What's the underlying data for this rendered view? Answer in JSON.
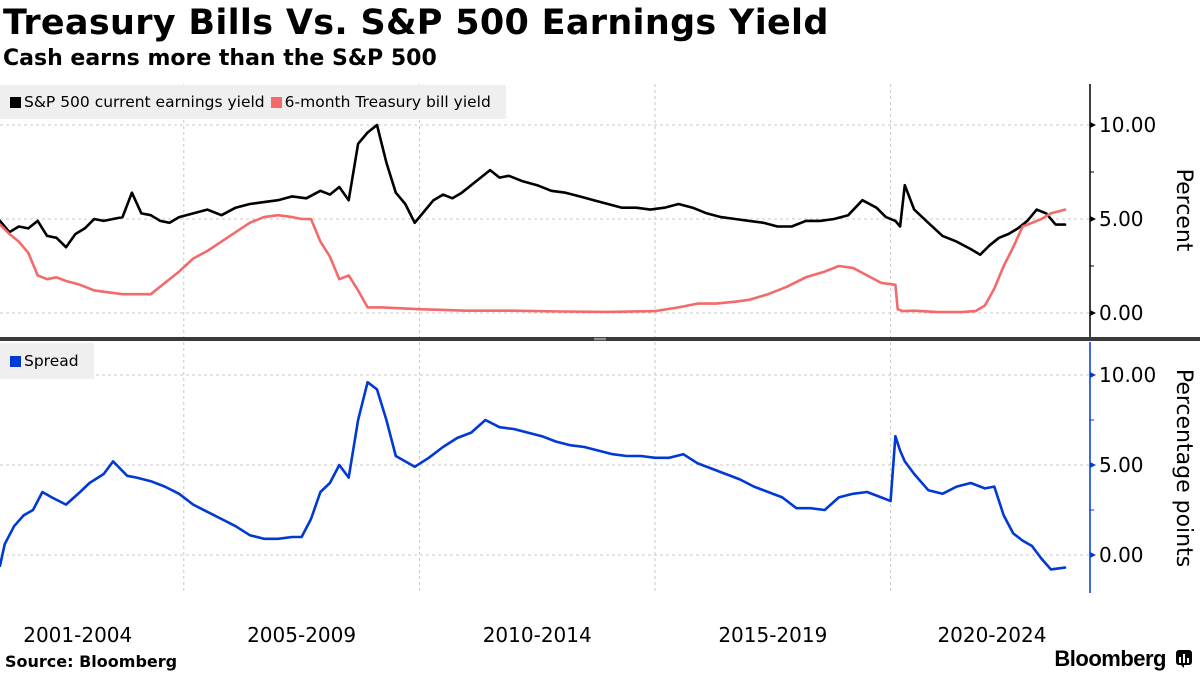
{
  "header": {
    "title": "Treasury Bills Vs. S&P 500 Earnings Yield",
    "subtitle": "Cash earns more than the S&P 500"
  },
  "footer": {
    "source": "Source:  Bloomberg",
    "brand": "Bloomberg",
    "brand_icon": "bloomberg-terminal-icon"
  },
  "colors": {
    "earnings_yield": "#000000",
    "tbill_yield": "#f46a6a",
    "spread": "#0039d4",
    "grid": "#c8c8c8",
    "separator": "#3a3a3a",
    "legend_bg": "#efefef"
  },
  "chart_data": [
    {
      "type": "line",
      "panel": "top",
      "legend": [
        {
          "name": "S&P 500 current earnings yield",
          "color": "#000000"
        },
        {
          "name": "6-month Treasury bill yield",
          "color": "#f46a6a"
        }
      ],
      "legend_position": "top-left",
      "ylabel": "Percent",
      "yticks": [
        0,
        5,
        10
      ],
      "ytick_labels": [
        "0.00",
        "5.00",
        "10.00"
      ],
      "ylim": [
        -0.6,
        12.0
      ],
      "xlim": [
        2001.1,
        2024.3
      ],
      "xticks": [
        2005,
        2010,
        2015,
        2020
      ],
      "grid": true,
      "series": [
        {
          "name": "S&P 500 current earnings yield",
          "x": [
            2001.1,
            2001.3,
            2001.5,
            2001.7,
            2001.9,
            2002.1,
            2002.3,
            2002.5,
            2002.7,
            2002.9,
            2003.1,
            2003.3,
            2003.5,
            2003.7,
            2003.9,
            2004.1,
            2004.3,
            2004.5,
            2004.7,
            2004.9,
            2005.2,
            2005.5,
            2005.8,
            2006.1,
            2006.4,
            2006.7,
            2007.0,
            2007.3,
            2007.6,
            2007.9,
            2008.1,
            2008.3,
            2008.5,
            2008.7,
            2008.9,
            2009.1,
            2009.3,
            2009.5,
            2009.7,
            2009.9,
            2010.1,
            2010.3,
            2010.5,
            2010.7,
            2010.9,
            2011.2,
            2011.5,
            2011.7,
            2011.9,
            2012.2,
            2012.5,
            2012.8,
            2013.1,
            2013.4,
            2013.7,
            2014.0,
            2014.3,
            2014.6,
            2014.9,
            2015.2,
            2015.5,
            2015.8,
            2016.1,
            2016.4,
            2016.7,
            2017.0,
            2017.3,
            2017.6,
            2017.9,
            2018.2,
            2018.5,
            2018.8,
            2019.1,
            2019.4,
            2019.7,
            2019.9,
            2020.1,
            2020.2,
            2020.3,
            2020.5,
            2020.8,
            2021.1,
            2021.4,
            2021.7,
            2021.9,
            2022.1,
            2022.3,
            2022.5,
            2022.7,
            2022.9,
            2023.1,
            2023.3,
            2023.5,
            2023.7
          ],
          "y": [
            4.9,
            4.3,
            4.6,
            4.5,
            4.9,
            4.1,
            4.0,
            3.5,
            4.2,
            4.5,
            5.0,
            4.9,
            5.0,
            5.1,
            6.4,
            5.3,
            5.2,
            4.9,
            4.8,
            5.1,
            5.3,
            5.5,
            5.2,
            5.6,
            5.8,
            5.9,
            6.0,
            6.2,
            6.1,
            6.5,
            6.3,
            6.7,
            6.0,
            9.0,
            9.6,
            10.0,
            8.0,
            6.4,
            5.8,
            4.8,
            5.4,
            6.0,
            6.3,
            6.1,
            6.4,
            7.0,
            7.6,
            7.2,
            7.3,
            7.0,
            6.8,
            6.5,
            6.4,
            6.2,
            6.0,
            5.8,
            5.6,
            5.6,
            5.5,
            5.6,
            5.8,
            5.6,
            5.3,
            5.1,
            5.0,
            4.9,
            4.8,
            4.6,
            4.6,
            4.9,
            4.9,
            5.0,
            5.2,
            6.0,
            5.6,
            5.1,
            4.9,
            4.6,
            6.8,
            5.5,
            4.8,
            4.1,
            3.8,
            3.4,
            3.1,
            3.6,
            4.0,
            4.2,
            4.5,
            4.9,
            5.5,
            5.3,
            4.7,
            4.7
          ]
        },
        {
          "name": "6-month Treasury bill yield",
          "x": [
            2001.1,
            2001.3,
            2001.5,
            2001.7,
            2001.9,
            2002.1,
            2002.3,
            2002.5,
            2002.8,
            2003.1,
            2003.4,
            2003.7,
            2004.0,
            2004.3,
            2004.6,
            2004.9,
            2005.2,
            2005.5,
            2005.8,
            2006.1,
            2006.4,
            2006.7,
            2007.0,
            2007.3,
            2007.5,
            2007.7,
            2007.9,
            2008.1,
            2008.3,
            2008.5,
            2008.7,
            2008.9,
            2009.2,
            2009.6,
            2010.0,
            2011.0,
            2012.0,
            2013.0,
            2014.0,
            2015.0,
            2015.5,
            2015.9,
            2016.3,
            2016.7,
            2017.0,
            2017.4,
            2017.8,
            2018.2,
            2018.6,
            2018.9,
            2019.2,
            2019.5,
            2019.8,
            2020.1,
            2020.15,
            2020.25,
            2020.5,
            2021.0,
            2021.5,
            2021.8,
            2022.0,
            2022.2,
            2022.4,
            2022.6,
            2022.8,
            2023.0,
            2023.2,
            2023.4,
            2023.7
          ],
          "y": [
            4.7,
            4.2,
            3.8,
            3.2,
            2.0,
            1.8,
            1.9,
            1.7,
            1.5,
            1.2,
            1.1,
            1.0,
            1.0,
            1.0,
            1.6,
            2.2,
            2.9,
            3.3,
            3.8,
            4.3,
            4.8,
            5.1,
            5.2,
            5.1,
            5.0,
            5.0,
            3.8,
            3.0,
            1.8,
            2.0,
            1.2,
            0.3,
            0.3,
            0.25,
            0.2,
            0.12,
            0.12,
            0.08,
            0.06,
            0.1,
            0.3,
            0.5,
            0.5,
            0.6,
            0.7,
            1.0,
            1.4,
            1.9,
            2.2,
            2.5,
            2.4,
            2.0,
            1.6,
            1.5,
            0.2,
            0.1,
            0.12,
            0.05,
            0.05,
            0.1,
            0.4,
            1.3,
            2.5,
            3.5,
            4.6,
            4.8,
            5.0,
            5.3,
            5.5
          ]
        }
      ]
    },
    {
      "type": "line",
      "panel": "bottom",
      "legend": [
        {
          "name": "Spread",
          "color": "#0039d4"
        }
      ],
      "legend_position": "top-left",
      "ylabel": "Percentage points",
      "yticks": [
        0,
        5,
        10
      ],
      "ytick_labels": [
        "0.00",
        "5.00",
        "10.00"
      ],
      "ylim": [
        -2.0,
        12.5
      ],
      "xlim": [
        2001.1,
        2024.3
      ],
      "xticks": [
        2005,
        2010,
        2015,
        2020
      ],
      "xtick_labels": [
        "2001-2004",
        "2005-2009",
        "2010-2014",
        "2015-2019",
        "2020-2024"
      ],
      "grid": true,
      "series": [
        {
          "name": "Spread",
          "x": [
            2001.1,
            2001.2,
            2001.4,
            2001.6,
            2001.8,
            2002.0,
            2002.2,
            2002.5,
            2002.8,
            2003.0,
            2003.3,
            2003.5,
            2003.8,
            2004.0,
            2004.3,
            2004.6,
            2004.9,
            2005.2,
            2005.5,
            2005.8,
            2006.1,
            2006.4,
            2006.7,
            2007.0,
            2007.3,
            2007.5,
            2007.7,
            2007.9,
            2008.1,
            2008.3,
            2008.5,
            2008.7,
            2008.9,
            2009.1,
            2009.3,
            2009.5,
            2009.7,
            2009.9,
            2010.2,
            2010.5,
            2010.8,
            2011.1,
            2011.4,
            2011.7,
            2012.0,
            2012.3,
            2012.6,
            2012.9,
            2013.2,
            2013.5,
            2013.8,
            2014.1,
            2014.4,
            2014.7,
            2015.0,
            2015.3,
            2015.6,
            2015.9,
            2016.2,
            2016.5,
            2016.8,
            2017.1,
            2017.4,
            2017.7,
            2018.0,
            2018.3,
            2018.6,
            2018.9,
            2019.2,
            2019.5,
            2019.8,
            2020.0,
            2020.1,
            2020.2,
            2020.3,
            2020.5,
            2020.8,
            2021.1,
            2021.4,
            2021.7,
            2022.0,
            2022.2,
            2022.4,
            2022.6,
            2022.8,
            2023.0,
            2023.2,
            2023.4,
            2023.7
          ],
          "y": [
            -0.6,
            0.6,
            1.6,
            2.2,
            2.5,
            3.5,
            3.2,
            2.8,
            3.5,
            4.0,
            4.5,
            5.2,
            4.4,
            4.3,
            4.1,
            3.8,
            3.4,
            2.8,
            2.4,
            2.0,
            1.6,
            1.1,
            0.9,
            0.9,
            1.0,
            1.0,
            2.0,
            3.5,
            4.0,
            5.0,
            4.3,
            7.5,
            9.6,
            9.2,
            7.5,
            5.5,
            5.2,
            4.9,
            5.4,
            6.0,
            6.5,
            6.8,
            7.5,
            7.1,
            7.0,
            6.8,
            6.6,
            6.3,
            6.1,
            6.0,
            5.8,
            5.6,
            5.5,
            5.5,
            5.4,
            5.4,
            5.6,
            5.1,
            4.8,
            4.5,
            4.2,
            3.8,
            3.5,
            3.2,
            2.6,
            2.6,
            2.5,
            3.2,
            3.4,
            3.5,
            3.2,
            3.0,
            6.6,
            5.8,
            5.2,
            4.5,
            3.6,
            3.4,
            3.8,
            4.0,
            3.7,
            3.8,
            2.2,
            1.2,
            0.8,
            0.5,
            -0.2,
            -0.8,
            -0.7
          ]
        }
      ]
    }
  ]
}
